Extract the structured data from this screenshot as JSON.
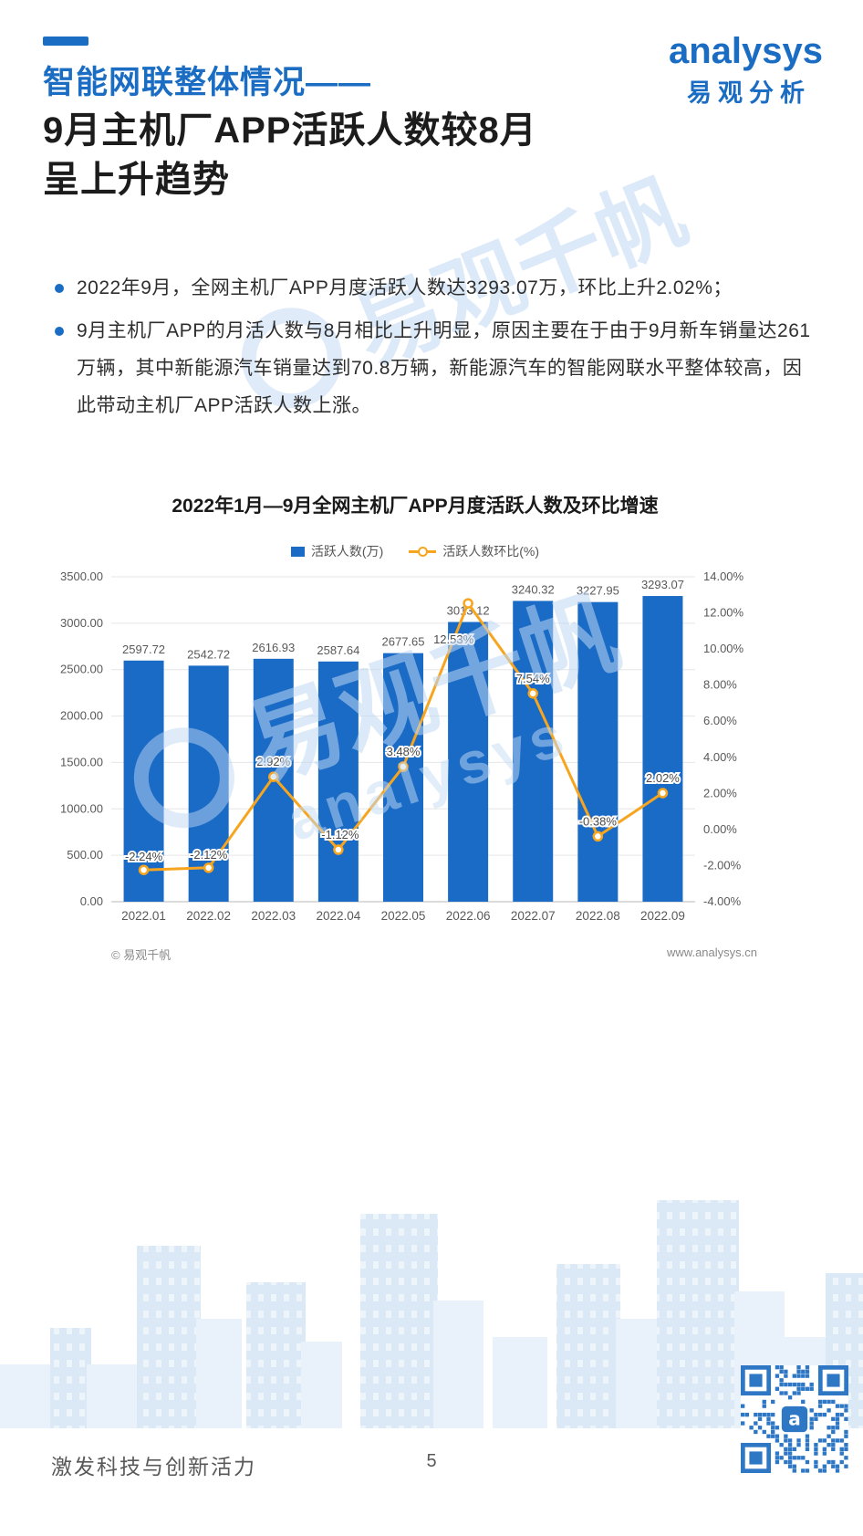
{
  "header": {
    "kicker": "智能网联整体情况——",
    "title_line1": "9月主机厂APP活跃人数较8月",
    "title_line2": "呈上升趋势",
    "logo_text": "analysys",
    "logo_subtext": "易观分析"
  },
  "bullets": [
    "2022年9月，全网主机厂APP月度活跃人数达3293.07万，环比上升2.02%；",
    "9月主机厂APP的月活人数与8月相比上升明显，原因主要在于由于9月新车销量达261万辆，其中新能源汽车销量达到70.8万辆，新能源汽车的智能网联水平整体较高，因此带动主机厂APP活跃人数上涨。"
  ],
  "chart_data": {
    "type": "bar+line",
    "title": "2022年1月—9月全网主机厂APP月度活跃人数及环比增速",
    "categories": [
      "2022.01",
      "2022.02",
      "2022.03",
      "2022.04",
      "2022.05",
      "2022.06",
      "2022.07",
      "2022.08",
      "2022.09"
    ],
    "series": [
      {
        "name": "活跃人数(万)",
        "type": "bar",
        "color": "#1a6bc6",
        "values": [
          2597.72,
          2542.72,
          2616.93,
          2587.64,
          2677.65,
          3013.12,
          3240.32,
          3227.95,
          3293.07
        ]
      },
      {
        "name": "活跃人数环比(%)",
        "type": "line",
        "color": "#f7a51f",
        "values": [
          -2.24,
          -2.12,
          2.92,
          -1.12,
          3.48,
          12.53,
          7.54,
          -0.38,
          2.02
        ]
      }
    ],
    "bar_labels": [
      "2597.72",
      "2542.72",
      "2616.93",
      "2587.64",
      "2677.65",
      "3013.12",
      "3240.32",
      "3227.95",
      "3293.07"
    ],
    "line_labels": [
      "-2.24%",
      "-2.12%",
      "2.92%",
      "-1.12%",
      "3.48%",
      "12.53%",
      "7.54%",
      "-0.38%",
      "2.02%"
    ],
    "left_axis": {
      "min": 0,
      "max": 3500,
      "step": 500,
      "labels": [
        "3500.00",
        "3000.00",
        "2500.00",
        "2000.00",
        "1500.00",
        "1000.00",
        "500.00",
        "0.00"
      ]
    },
    "right_axis": {
      "min": -4,
      "max": 14,
      "step": 2,
      "labels": [
        "14.00%",
        "12.00%",
        "10.00%",
        "8.00%",
        "6.00%",
        "4.00%",
        "2.00%",
        "0.00%",
        "-2.00%",
        "-4.00%"
      ]
    },
    "legend_position": "top",
    "grid": true
  },
  "chart_footer": {
    "left": "© 易观千帆",
    "right": "www.analysys.cn"
  },
  "watermarks": {
    "text": "易观千帆",
    "latin": "analysys"
  },
  "footer": {
    "slogan": "激发科技与创新活力",
    "page_number": "5"
  },
  "colors": {
    "accent_blue": "#1a6dc3",
    "bar_blue": "#1a6bc6",
    "line_orange": "#f7a51f"
  }
}
